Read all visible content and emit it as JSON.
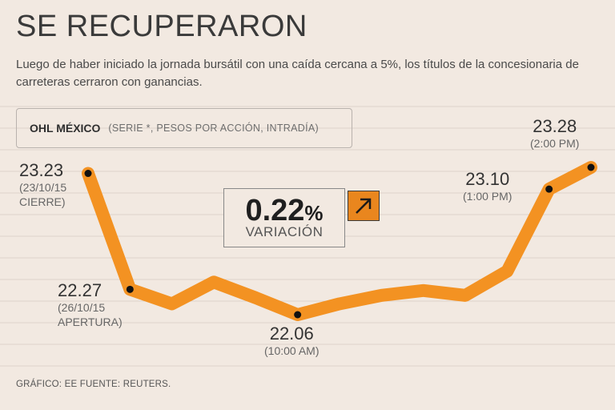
{
  "header": {
    "title": "SE RECUPERARON",
    "subtitle": "Luego de haber iniciado la jornada bursátil con una caída cercana a 5%, los títulos de la concesionaria de carreteras cerraron con ganancias."
  },
  "series_box": {
    "name": "OHL MÉXICO",
    "description": "(SERIE *, PESOS POR ACCIÓN, INTRADÍA)"
  },
  "variation": {
    "value": "0.22",
    "unit": "%",
    "label": "VARIACIÓN",
    "icon": "arrow-up-right-icon"
  },
  "annotations": {
    "close_prev": {
      "value": "23.23",
      "line1": "(23/10/15",
      "line2": "CIERRE)"
    },
    "open": {
      "value": "22.27",
      "line1": "(26/10/15",
      "line2": "APERTURA)"
    },
    "low": {
      "value": "22.06",
      "line1": "(10:00 AM)"
    },
    "one_pm": {
      "value": "23.10",
      "line1": "(1:00 PM)"
    },
    "two_pm": {
      "value": "23.28",
      "line1": "(2:00 PM)"
    }
  },
  "footer": "GRÁFICO: EE  FUENTE: REUTERS.",
  "colors": {
    "line": "#f39222",
    "background": "#f2e9e1",
    "accent": "#e9861e",
    "point": "#111111"
  },
  "chart_data": {
    "type": "line",
    "title": "SE RECUPERARON",
    "series": [
      {
        "name": "OHL MÉXICO",
        "values": [
          23.23,
          22.27,
          22.15,
          22.33,
          22.2,
          22.06,
          22.15,
          22.22,
          22.26,
          22.22,
          22.42,
          23.1,
          23.28
        ],
        "labeled_points": [
          0,
          1,
          5,
          11,
          12
        ]
      }
    ],
    "grid": "horizontal"
  }
}
